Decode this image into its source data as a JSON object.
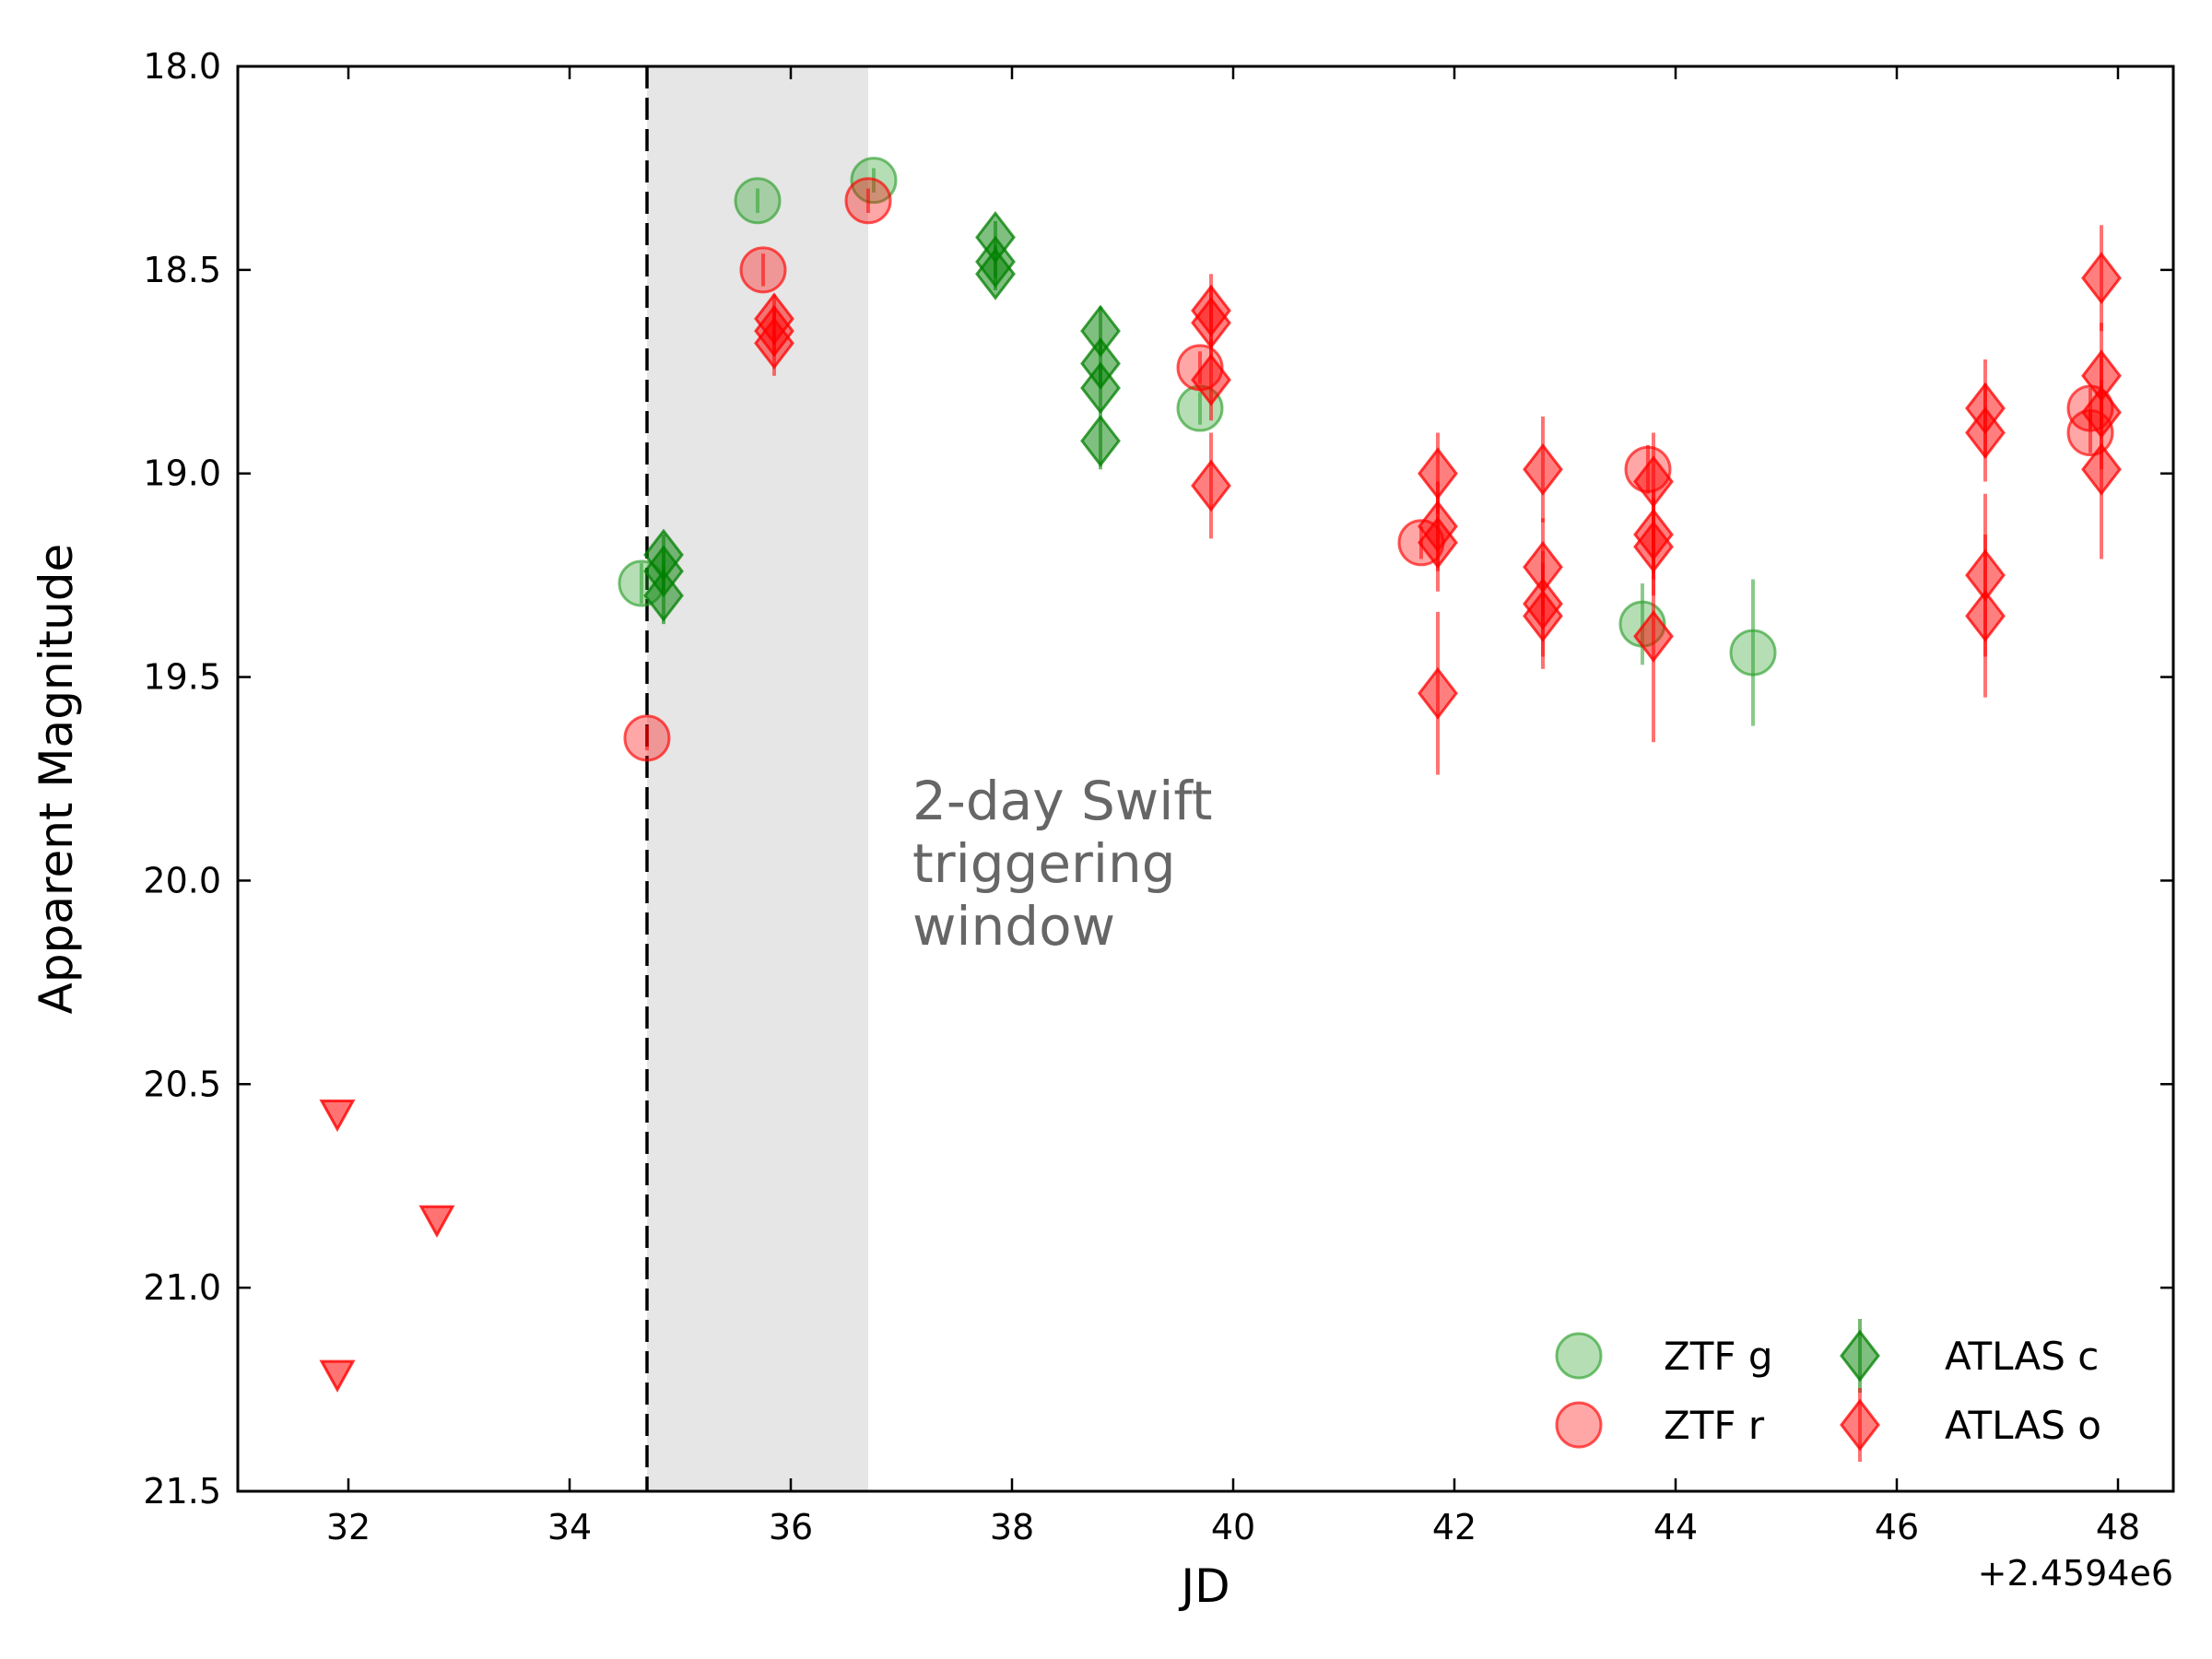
{
  "chart_data": {
    "type": "scatter",
    "xlabel": "JD",
    "ylabel": "Apparent Magnitude",
    "x_offset_label": "+2.4594e6",
    "xlim": [
      31,
      48.5
    ],
    "ylim": [
      21.5,
      18.0
    ],
    "y_inverted": true,
    "x_ticks": [
      32,
      34,
      36,
      38,
      40,
      42,
      44,
      46,
      48
    ],
    "x_tick_labels": [
      "32",
      "34",
      "36",
      "38",
      "40",
      "42",
      "44",
      "46",
      "48"
    ],
    "y_ticks": [
      18.0,
      18.5,
      19.0,
      19.5,
      20.0,
      20.5,
      21.0,
      21.5
    ],
    "y_tick_labels": [
      "18.0",
      "18.5",
      "19.0",
      "19.5",
      "20.0",
      "20.5",
      "21.0",
      "21.5"
    ],
    "grid": false,
    "legend_position": "lower-right",
    "annotation": {
      "lines": [
        "2-day Swift",
        "triggering",
        "window"
      ],
      "x": 37.1,
      "y": 19.85
    },
    "vline": {
      "x": 34.7,
      "style": "dashed",
      "color": "#000000"
    },
    "shaded_region": {
      "x": [
        34.7,
        36.7
      ],
      "color": "#e6e6e6"
    },
    "colors": {
      "green": "#008000",
      "red": "#ff0000",
      "shade": "#e6e6e6",
      "text_gray": "#666666"
    },
    "series": [
      {
        "name": "ZTF g",
        "marker": "circle",
        "color": "#2ca02c",
        "points": [
          {
            "x": 34.65,
            "y": 19.27,
            "err": 0.05
          },
          {
            "x": 35.7,
            "y": 18.33,
            "err": 0.03
          },
          {
            "x": 36.75,
            "y": 18.28,
            "err": 0.03
          },
          {
            "x": 39.7,
            "y": 18.84,
            "err": 0.04
          },
          {
            "x": 43.7,
            "y": 19.37,
            "err": 0.1
          },
          {
            "x": 44.7,
            "y": 19.44,
            "err": 0.18
          }
        ]
      },
      {
        "name": "ZTF r",
        "marker": "circle",
        "color": "#ff0000",
        "points": [
          {
            "x": 34.7,
            "y": 19.65,
            "err": 0.03
          },
          {
            "x": 35.75,
            "y": 18.5,
            "err": 0.04
          },
          {
            "x": 36.7,
            "y": 18.33,
            "err": 0.03
          },
          {
            "x": 39.7,
            "y": 18.74,
            "err": 0.04
          },
          {
            "x": 41.7,
            "y": 19.17,
            "err": 0.04
          },
          {
            "x": 43.75,
            "y": 18.99,
            "err": 0.06
          },
          {
            "x": 47.75,
            "y": 18.84,
            "err": 0.05
          },
          {
            "x": 47.75,
            "y": 18.9,
            "err": 0.05
          }
        ]
      },
      {
        "name": "ATLAS c",
        "marker": "diamond",
        "color": "#008000",
        "points": [
          {
            "x": 34.85,
            "y": 19.2,
            "err": 0.05
          },
          {
            "x": 34.85,
            "y": 19.24,
            "err": 0.05
          },
          {
            "x": 34.85,
            "y": 19.3,
            "err": 0.07
          },
          {
            "x": 37.85,
            "y": 18.42,
            "err": 0.04
          },
          {
            "x": 37.85,
            "y": 18.48,
            "err": 0.04
          },
          {
            "x": 37.85,
            "y": 18.51,
            "err": 0.04
          },
          {
            "x": 38.8,
            "y": 18.65,
            "err": 0.06
          },
          {
            "x": 38.8,
            "y": 18.73,
            "err": 0.06
          },
          {
            "x": 38.8,
            "y": 18.79,
            "err": 0.06
          },
          {
            "x": 38.8,
            "y": 18.92,
            "err": 0.07
          }
        ]
      },
      {
        "name": "ATLAS o",
        "marker": "diamond",
        "color": "#ff0000",
        "points": [
          {
            "x": 31.9,
            "y": 20.57,
            "limit": true
          },
          {
            "x": 32.8,
            "y": 20.83,
            "limit": true
          },
          {
            "x": 31.9,
            "y": 21.21,
            "limit": true
          },
          {
            "x": 35.85,
            "y": 18.62,
            "err": 0.06
          },
          {
            "x": 35.85,
            "y": 18.65,
            "err": 0.06
          },
          {
            "x": 35.85,
            "y": 18.68,
            "err": 0.08
          },
          {
            "x": 39.8,
            "y": 18.6,
            "err": 0.09
          },
          {
            "x": 39.8,
            "y": 18.63,
            "err": 0.09
          },
          {
            "x": 39.8,
            "y": 18.77,
            "err": 0.1
          },
          {
            "x": 39.8,
            "y": 19.03,
            "err": 0.13
          },
          {
            "x": 41.85,
            "y": 19.0,
            "err": 0.1
          },
          {
            "x": 41.85,
            "y": 19.13,
            "err": 0.11
          },
          {
            "x": 41.85,
            "y": 19.17,
            "err": 0.12
          },
          {
            "x": 41.85,
            "y": 19.54,
            "err": 0.2
          },
          {
            "x": 42.8,
            "y": 18.99,
            "err": 0.13
          },
          {
            "x": 42.8,
            "y": 19.23,
            "err": 0.12
          },
          {
            "x": 42.8,
            "y": 19.32,
            "err": 0.13
          },
          {
            "x": 42.8,
            "y": 19.35,
            "err": 0.13
          },
          {
            "x": 43.8,
            "y": 19.02,
            "err": 0.12
          },
          {
            "x": 43.8,
            "y": 19.15,
            "err": 0.11
          },
          {
            "x": 43.8,
            "y": 19.18,
            "err": 0.12
          },
          {
            "x": 43.8,
            "y": 19.4,
            "err": 0.26
          },
          {
            "x": 46.8,
            "y": 18.84,
            "err": 0.12
          },
          {
            "x": 46.8,
            "y": 18.9,
            "err": 0.12
          },
          {
            "x": 46.8,
            "y": 19.25,
            "err": 0.2
          },
          {
            "x": 46.8,
            "y": 19.35,
            "err": 0.2
          },
          {
            "x": 47.85,
            "y": 18.52,
            "err": 0.13
          },
          {
            "x": 47.85,
            "y": 18.76,
            "err": 0.13
          },
          {
            "x": 47.85,
            "y": 18.85,
            "err": 0.14
          },
          {
            "x": 47.85,
            "y": 18.99,
            "err": 0.22
          }
        ]
      }
    ],
    "legend": [
      {
        "label": "ZTF g",
        "marker": "circle",
        "color": "#2ca02c"
      },
      {
        "label": "ZTF r",
        "marker": "circle",
        "color": "#ff0000"
      },
      {
        "label": "ATLAS c",
        "marker": "diamond",
        "color": "#008000"
      },
      {
        "label": "ATLAS o",
        "marker": "diamond",
        "color": "#ff0000"
      }
    ]
  }
}
